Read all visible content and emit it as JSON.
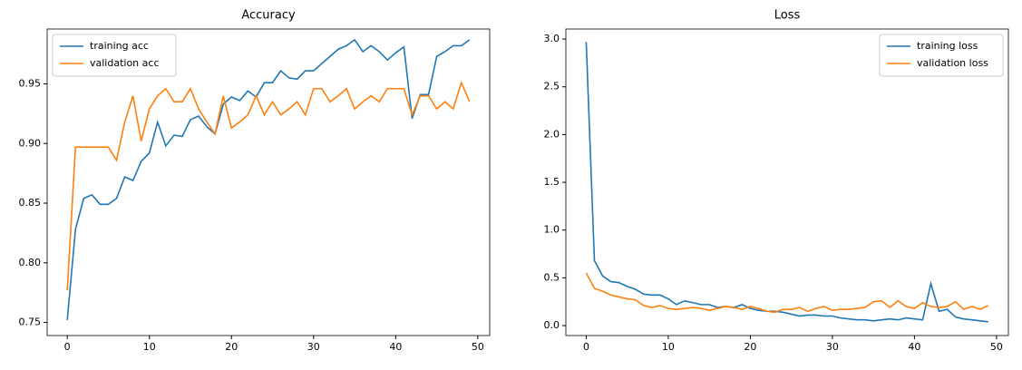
{
  "chart_data": [
    {
      "type": "line",
      "title": "Accuracy",
      "legend": "upper left",
      "x": [
        0,
        1,
        2,
        3,
        4,
        5,
        6,
        7,
        8,
        9,
        10,
        11,
        12,
        13,
        14,
        15,
        16,
        17,
        18,
        19,
        20,
        21,
        22,
        23,
        24,
        25,
        26,
        27,
        28,
        29,
        30,
        31,
        32,
        33,
        34,
        35,
        36,
        37,
        38,
        39,
        40,
        41,
        42,
        43,
        44,
        45,
        46,
        47,
        48,
        49
      ],
      "series": [
        {
          "name": "training acc",
          "color": "#1f77b4",
          "values": [
            0.752,
            0.828,
            0.854,
            0.857,
            0.849,
            0.849,
            0.854,
            0.872,
            0.869,
            0.885,
            0.892,
            0.918,
            0.898,
            0.907,
            0.906,
            0.92,
            0.923,
            0.914,
            0.908,
            0.933,
            0.939,
            0.936,
            0.944,
            0.939,
            0.951,
            0.951,
            0.961,
            0.955,
            0.954,
            0.961,
            0.961,
            0.967,
            0.973,
            0.979,
            0.982,
            0.987,
            0.977,
            0.982,
            0.977,
            0.97,
            0.976,
            0.981,
            0.921,
            0.941,
            0.941,
            0.973,
            0.977,
            0.982,
            0.982,
            0.987
          ]
        },
        {
          "name": "validation acc",
          "color": "#ff7f0e",
          "values": [
            0.777,
            0.897,
            0.897,
            0.897,
            0.897,
            0.897,
            0.886,
            0.918,
            0.94,
            0.902,
            0.929,
            0.94,
            0.946,
            0.935,
            0.935,
            0.946,
            0.929,
            0.918,
            0.908,
            0.94,
            0.913,
            0.918,
            0.924,
            0.94,
            0.924,
            0.935,
            0.924,
            0.929,
            0.935,
            0.924,
            0.946,
            0.946,
            0.935,
            0.94,
            0.946,
            0.929,
            0.935,
            0.94,
            0.935,
            0.946,
            0.946,
            0.946,
            0.924,
            0.94,
            0.94,
            0.929,
            0.935,
            0.929,
            0.951,
            0.935
          ]
        }
      ],
      "xlim": [
        -2.45,
        51.45
      ],
      "xticks": [
        0,
        10,
        20,
        30,
        40,
        50
      ],
      "ylim": [
        0.739,
        0.996
      ],
      "yticks": [
        0.75,
        {
          "value": 0.8,
          "label": "0.80"
        },
        0.85,
        {
          "value": 0.9,
          "label": "0.90"
        },
        0.95
      ]
    },
    {
      "type": "line",
      "title": "Loss",
      "legend": "upper right",
      "x": [
        0,
        1,
        2,
        3,
        4,
        5,
        6,
        7,
        8,
        9,
        10,
        11,
        12,
        13,
        14,
        15,
        16,
        17,
        18,
        19,
        20,
        21,
        22,
        23,
        24,
        25,
        26,
        27,
        28,
        29,
        30,
        31,
        32,
        33,
        34,
        35,
        36,
        37,
        38,
        39,
        40,
        41,
        42,
        43,
        44,
        45,
        46,
        47,
        48,
        49
      ],
      "series": [
        {
          "name": "training loss",
          "color": "#1f77b4",
          "values": [
            2.97,
            0.68,
            0.52,
            0.46,
            0.45,
            0.41,
            0.38,
            0.33,
            0.32,
            0.32,
            0.28,
            0.22,
            0.26,
            0.24,
            0.22,
            0.22,
            0.19,
            0.2,
            0.19,
            0.22,
            0.18,
            0.16,
            0.15,
            0.15,
            0.14,
            0.12,
            0.1,
            0.11,
            0.11,
            0.1,
            0.1,
            0.08,
            0.07,
            0.06,
            0.06,
            0.05,
            0.06,
            0.07,
            0.06,
            0.08,
            0.07,
            0.06,
            0.44,
            0.15,
            0.17,
            0.09,
            0.07,
            0.06,
            0.05,
            0.04
          ]
        },
        {
          "name": "validation loss",
          "color": "#ff7f0e",
          "values": [
            0.55,
            0.39,
            0.36,
            0.32,
            0.3,
            0.28,
            0.27,
            0.21,
            0.19,
            0.21,
            0.18,
            0.17,
            0.18,
            0.19,
            0.18,
            0.16,
            0.18,
            0.2,
            0.19,
            0.17,
            0.2,
            0.18,
            0.15,
            0.14,
            0.17,
            0.17,
            0.19,
            0.15,
            0.18,
            0.2,
            0.16,
            0.17,
            0.17,
            0.18,
            0.19,
            0.25,
            0.26,
            0.19,
            0.26,
            0.2,
            0.18,
            0.24,
            0.2,
            0.19,
            0.2,
            0.25,
            0.17,
            0.2,
            0.17,
            0.21
          ]
        }
      ],
      "xlim": [
        -2.48,
        51.45
      ],
      "xticks": [
        0,
        10,
        20,
        30,
        40,
        50
      ],
      "ylim": [
        -0.104,
        3.105
      ],
      "yticks": [
        {
          "value": 0,
          "label": "0.0"
        },
        0.5,
        {
          "value": 1,
          "label": "1.0"
        },
        1.5,
        {
          "value": 2,
          "label": "2.0"
        },
        2.5,
        {
          "value": 3,
          "label": "3.0"
        }
      ]
    }
  ]
}
